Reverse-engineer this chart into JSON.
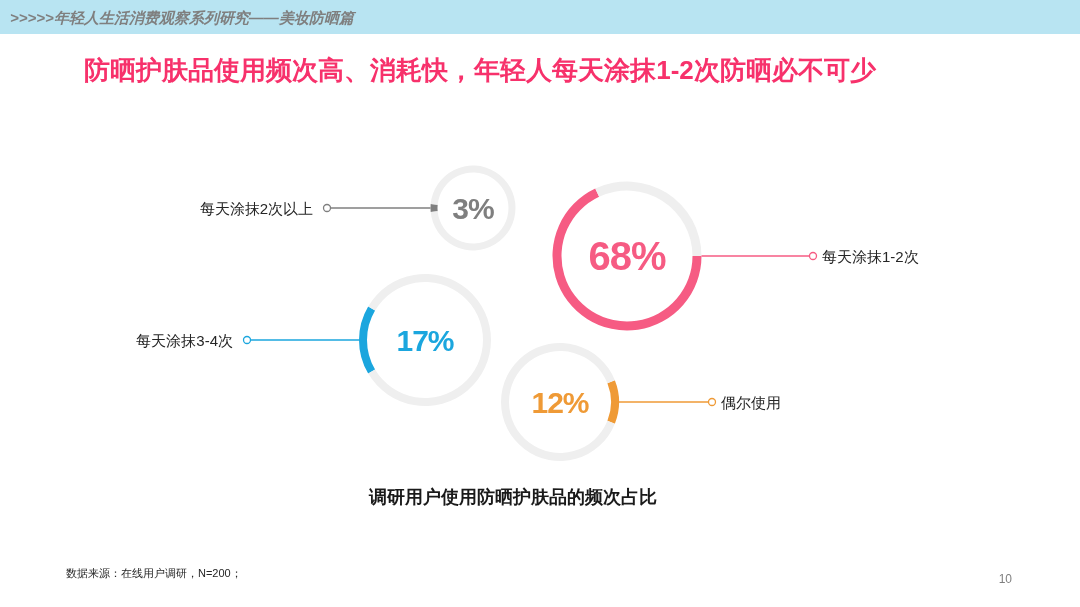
{
  "chart_data": [
    {
      "type": "donut",
      "title": "防晒护肤品使用频次高、消耗快，年轻人每天涂抹1-2次防晒必不可少",
      "subtitle": "调研用户使用防晒护肤品的频次占比",
      "annotations": [
        ">>>>>年轻人生活消费观察系列研究——美妆防晒篇",
        "数据来源：在线用户调研，N=200；",
        "10"
      ],
      "categories": [
        "每天涂抹2次以上",
        null
      ],
      "values": [
        3,
        97
      ],
      "colors": [
        "#7f7f7f",
        "#efefef"
      ],
      "value_labels": [
        "3%",
        null
      ]
    },
    {
      "type": "donut",
      "categories": [
        "每天涂抹1-2次",
        null
      ],
      "values": [
        68,
        32
      ],
      "colors": [
        "#f65b83",
        "#efefef"
      ],
      "value_labels": [
        "68%",
        null
      ]
    },
    {
      "type": "donut",
      "categories": [
        "每天涂抹3-4次",
        null
      ],
      "values": [
        17,
        83
      ],
      "colors": [
        "#1ba6de",
        "#efefef"
      ],
      "value_labels": [
        "17%",
        null
      ]
    },
    {
      "type": "donut",
      "categories": [
        "偶尔使用",
        null
      ],
      "values": [
        12,
        88
      ],
      "colors": [
        "#ef9a36",
        "#efefef"
      ],
      "value_labels": [
        "12%",
        null
      ]
    }
  ]
}
